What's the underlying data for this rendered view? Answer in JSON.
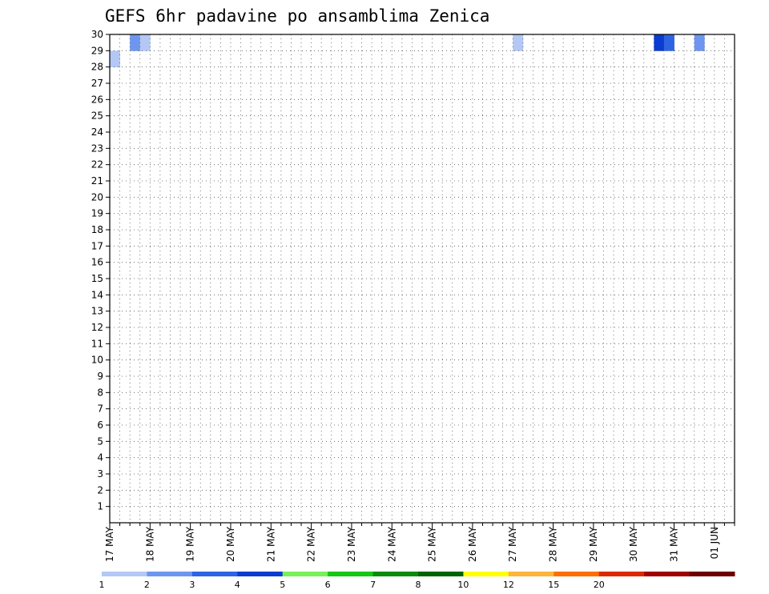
{
  "chart_data": {
    "type": "heatmap",
    "title": "GEFS 6hr padavine po ansamblima Zenica",
    "xlabel": "",
    "ylabel": "",
    "x_tick_labels": [
      "17 MAY",
      "18 MAY",
      "19 MAY",
      "20 MAY",
      "21 MAY",
      "22 MAY",
      "23 MAY",
      "24 MAY",
      "25 MAY",
      "26 MAY",
      "27 MAY",
      "28 MAY",
      "29 MAY",
      "30 MAY",
      "31 MAY",
      "01 JUN"
    ],
    "y_tick_labels": [
      "1",
      "2",
      "3",
      "4",
      "5",
      "6",
      "7",
      "8",
      "9",
      "10",
      "11",
      "12",
      "13",
      "14",
      "15",
      "16",
      "17",
      "18",
      "19",
      "20",
      "21",
      "22",
      "23",
      "24",
      "25",
      "26",
      "27",
      "28",
      "29",
      "30"
    ],
    "x_range": [
      "17 MAY 00",
      "01 JUN 12"
    ],
    "y_range": [
      1,
      30
    ],
    "time_step_hours": 6,
    "grid": "dotted",
    "legend_placement": "bottom",
    "legend": {
      "labels": [
        "1",
        "2",
        "3",
        "4",
        "5",
        "6",
        "7",
        "8",
        "10",
        "12",
        "15",
        "20"
      ],
      "colors": [
        "#b4c8f5",
        "#6e96f0",
        "#2d64e6",
        "#0a3cd2",
        "#78f05a",
        "#14c814",
        "#0a8c0a",
        "#006400",
        "#ffff00",
        "#ffb43c",
        "#ff6e00",
        "#dc2800",
        "#a00000",
        "#6e0000"
      ]
    },
    "colors_by_level": [
      "#ffffff",
      "#b4c8f5",
      "#6e96f0",
      "#2d64e6",
      "#0a3cd2",
      "#78f05a",
      "#14c814",
      "#0a8c0a",
      "#006400",
      "#ffff00",
      "#ffb43c",
      "#ff6e00",
      "#dc2800",
      "#a00000",
      "#6e0000"
    ],
    "members": {
      "30": "0021000000000000000000000000000000000000100000000000004300200000000030000000000000000000000030000200000000000000000000000000000000000000000000011000000200000000000000000000000000000000000000000000000000000000000000000000000000000000000000000000000000000000000000000000000000000000000000000000000000000000000000000000000000000000000000000000000000000000000000000000000000000000000000000",
      "29": "100000000000000000000000000000000000000000000000000000000000000000000000000000000000000000000000000000000000000000000000000000000000000000000000000000000000000000000000000000000000000000000000000000000000000000000000000000000000000000000000000000000000000000000000000000000000000000000000000000000000000000000000000000000000000000000000000000000000000000000000000000000000000000000000000000"
    }
  }
}
